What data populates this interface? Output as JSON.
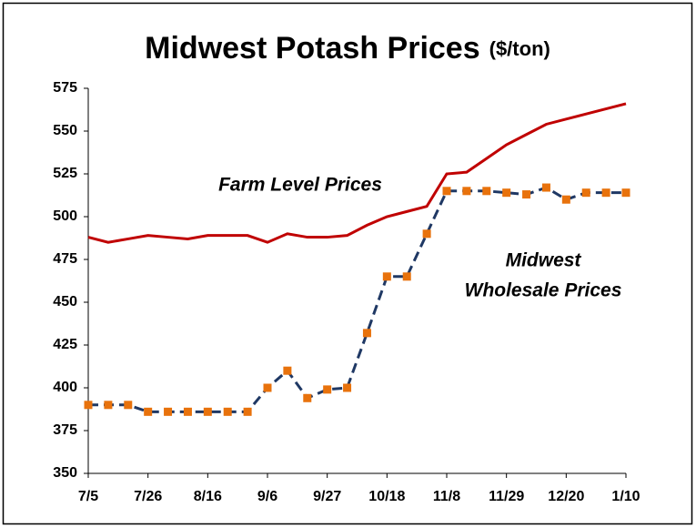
{
  "chart_data": {
    "type": "line",
    "title": "Midwest Potash Prices",
    "subtitle": "($/ton)",
    "categories": [
      "7/5",
      null,
      null,
      "7/26",
      null,
      null,
      "8/16",
      null,
      null,
      "9/6",
      null,
      null,
      "9/27",
      null,
      null,
      "10/18",
      null,
      null,
      "11/8",
      null,
      null,
      "11/29",
      null,
      null,
      "12/20",
      null,
      null,
      "1/10"
    ],
    "series": [
      {
        "color": "#c00000",
        "style": "solid",
        "values": [
          488,
          485,
          487,
          489,
          488,
          487,
          489,
          489,
          489,
          485,
          490,
          488,
          488,
          489,
          495,
          500,
          503,
          506,
          525,
          526,
          534,
          542,
          548,
          554,
          557,
          560,
          563,
          566
        ]
      },
      {
        "color": "#1f3864",
        "marker_color": "#e8720c",
        "style": "dashed",
        "values": [
          390,
          390,
          390,
          386,
          386,
          386,
          386,
          386,
          386,
          400,
          410,
          394,
          399,
          400,
          432,
          465,
          465,
          490,
          515,
          515,
          515,
          514,
          513,
          517,
          510,
          514,
          514,
          514
        ]
      }
    ],
    "annotations": [
      {
        "lines": [
          "Farm Level Prices"
        ]
      },
      {
        "lines": [
          "Midwest",
          "Wholesale Prices"
        ]
      }
    ],
    "ylim": [
      350,
      575
    ],
    "yticks": [
      350,
      375,
      400,
      425,
      450,
      475,
      500,
      525,
      550,
      575
    ],
    "grid": false
  }
}
